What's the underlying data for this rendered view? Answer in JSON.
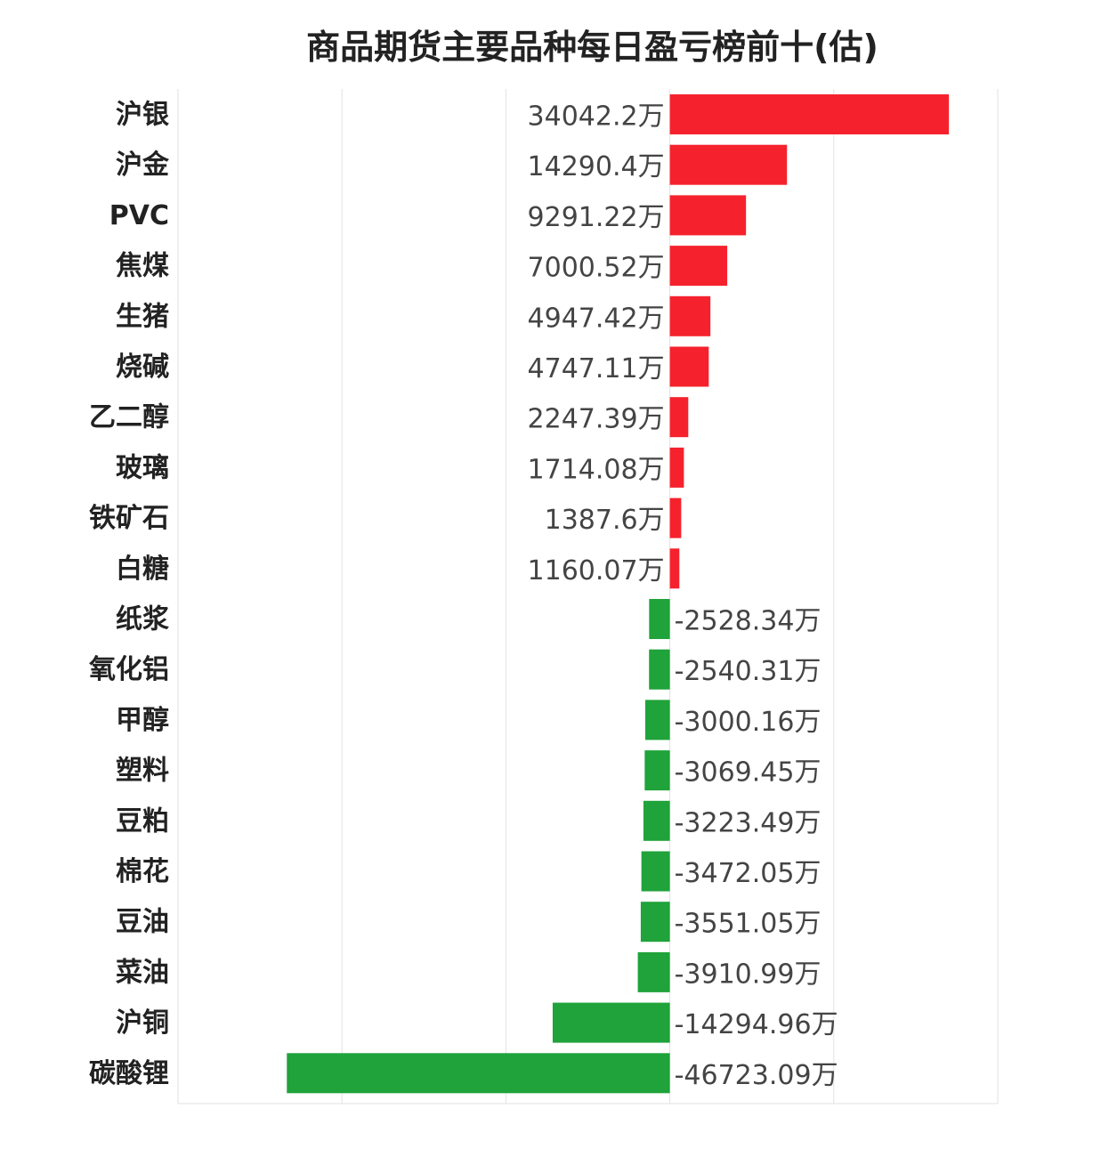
{
  "chart_data": {
    "type": "bar",
    "orientation": "horizontal",
    "title": "商品期货主要品种每日盈亏榜前十(估)",
    "unit_suffix": "万",
    "xlim": [
      -60000,
      40000
    ],
    "grid": true,
    "categories": [
      "沪银",
      "沪金",
      "PVC",
      "焦煤",
      "生猪",
      "烧碱",
      "乙二醇",
      "玻璃",
      "铁矿石",
      "白糖",
      "纸浆",
      "氧化铝",
      "甲醇",
      "塑料",
      "豆粕",
      "棉花",
      "豆油",
      "菜油",
      "沪铜",
      "碳酸锂"
    ],
    "values": [
      34042.2,
      14290.4,
      9291.22,
      7000.52,
      4947.42,
      4747.11,
      2247.39,
      1714.08,
      1387.6,
      1160.07,
      -2528.34,
      -2540.31,
      -3000.16,
      -3069.45,
      -3223.49,
      -3472.05,
      -3551.05,
      -3910.99,
      -14294.96,
      -46723.09
    ],
    "value_labels": [
      "34042.2万",
      "14290.4万",
      "9291.22万",
      "7000.52万",
      "4947.42万",
      "4747.11万",
      "2247.39万",
      "1714.08万",
      "1387.6万",
      "1160.07万",
      "-2528.34万",
      "-2540.31万",
      "-3000.16万",
      "-3069.45万",
      "-3223.49万",
      "-3472.05万",
      "-3551.05万",
      "-3910.99万",
      "-14294.96万",
      "-46723.09万"
    ],
    "colors": {
      "positive": "#f5222d",
      "negative": "#1fa33a"
    }
  }
}
